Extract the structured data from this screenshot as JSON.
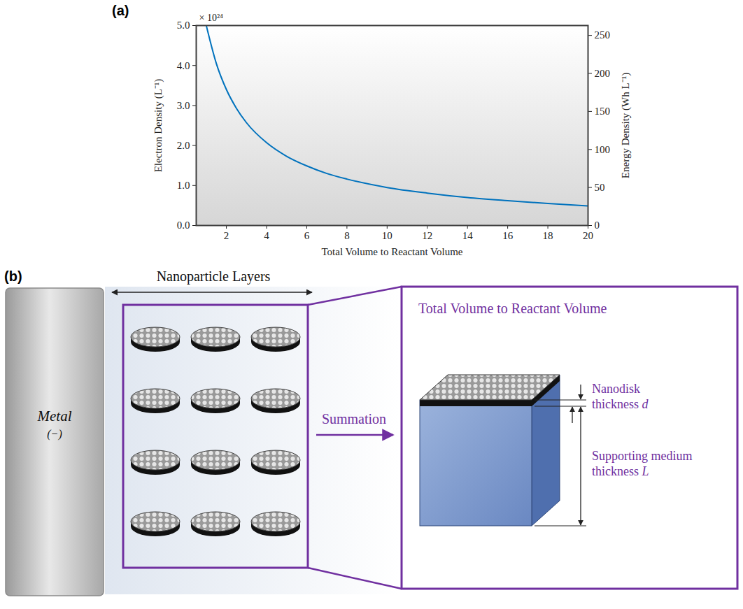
{
  "chart_data": {
    "type": "line",
    "panel_label": "(a)",
    "annotations": [
      "× 10²⁴"
    ],
    "xlabel": "Total Volume to Reactant Volume",
    "ylabel": "Electron Density (L⁻¹)",
    "y2label": "Energy Density (Wh L⁻¹)",
    "x": [
      1,
      1.5,
      2,
      2.5,
      3,
      4,
      5,
      6,
      7,
      8,
      10,
      12,
      14,
      16,
      18,
      20
    ],
    "values": [
      5.0,
      4.05,
      3.4,
      2.93,
      2.57,
      2.07,
      1.73,
      1.49,
      1.3,
      1.16,
      0.95,
      0.81,
      0.7,
      0.62,
      0.55,
      0.49
    ],
    "color": "#0072BD",
    "xlim": [
      0.5,
      20
    ],
    "xticks": [
      2,
      4,
      6,
      8,
      10,
      12,
      14,
      16,
      18,
      20
    ],
    "ylim": [
      0,
      5
    ],
    "yticks": [
      {
        "value": 0,
        "label": "0.0"
      },
      {
        "value": 1,
        "label": "1.0"
      },
      {
        "value": 2,
        "label": "2.0"
      },
      {
        "value": 3,
        "label": "3.0"
      },
      {
        "value": 4,
        "label": "4.0"
      },
      {
        "value": 5,
        "label": "5.0"
      }
    ],
    "y2lim": [
      0,
      263
    ],
    "y2ticks": [
      0,
      50,
      100,
      150,
      200,
      250
    ],
    "grid": false
  },
  "diagram": {
    "panel_label": "(b)",
    "electrode": {
      "label": "Metal",
      "sign": "(−)"
    },
    "layers_label": "Nanoparticle Layers",
    "arrow_label": "Summation",
    "inset": {
      "title": "Total Volume to Reactant Volume",
      "dimensions": [
        {
          "text": "Nanodisk thickness",
          "symbol": "d"
        },
        {
          "text": "Supporting medium thickness",
          "symbol": "L"
        }
      ]
    }
  }
}
